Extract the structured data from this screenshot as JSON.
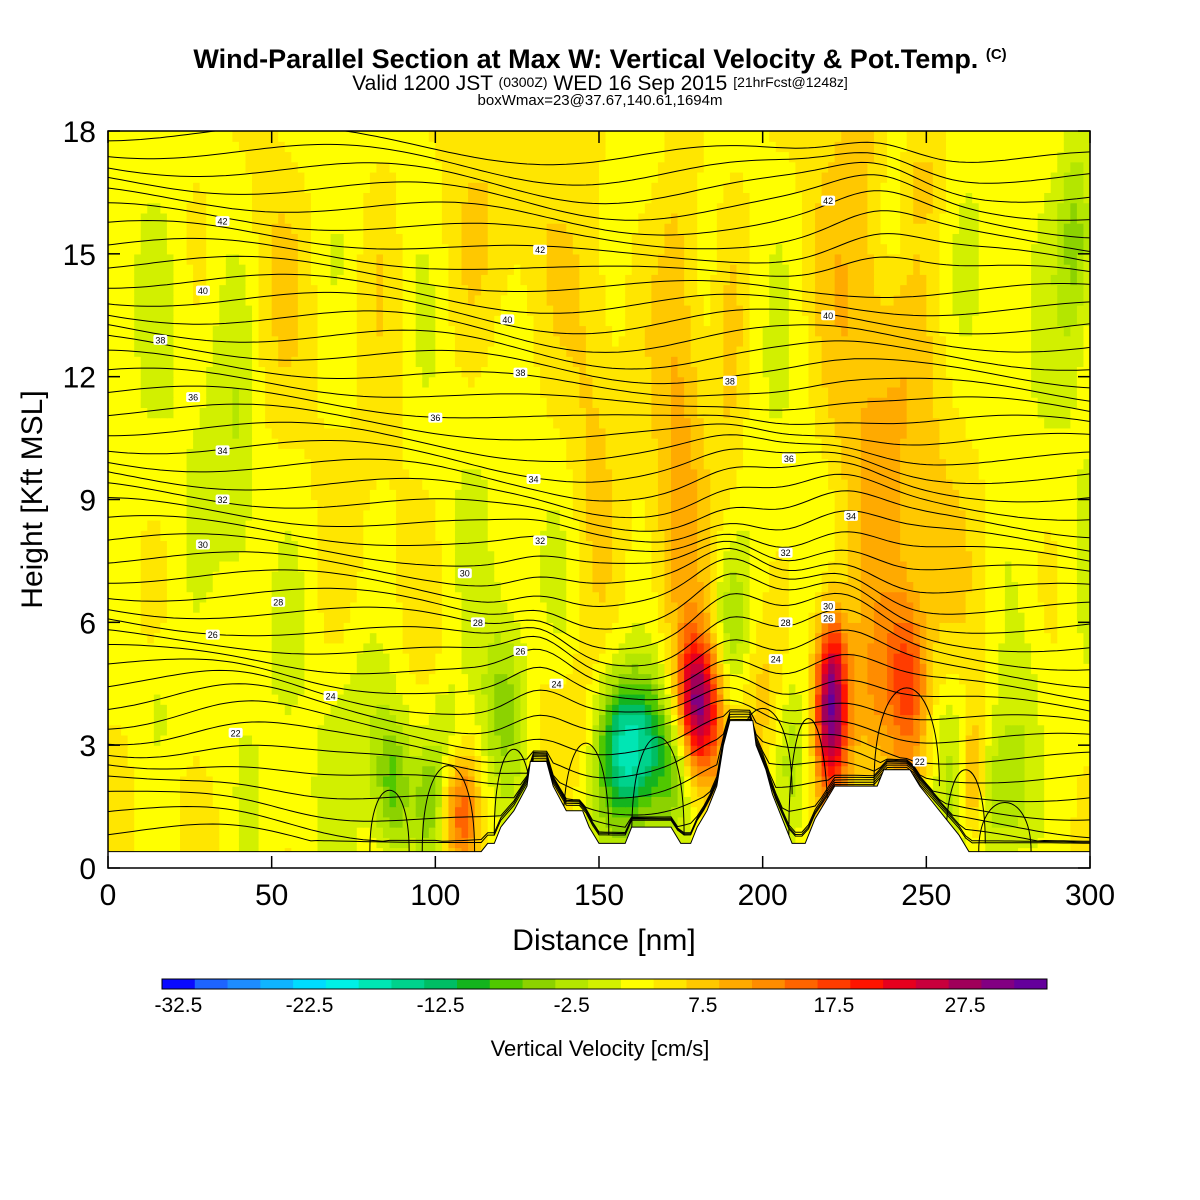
{
  "titles": {
    "main": "Wind-Parallel Section at Max W: Vertical Velocity & Pot.Temp.",
    "copyright": "(C)",
    "valid_prefix": "Valid 1200 JST",
    "valid_utc": "(0300Z)",
    "valid_date": "WED 16 Sep 2015",
    "forecast": "[21hrFcst@1248z]",
    "box": "boxWmax=23@37.67,140.61,1694m"
  },
  "colorbar": {
    "title": "Vertical Velocity [cm/s]",
    "labels": [
      "-32.5",
      "-22.5",
      "-12.5",
      "-2.5",
      "7.5",
      "17.5",
      "27.5"
    ],
    "colors": [
      "#0a0aff",
      "#1e64ff",
      "#1e8cff",
      "#10b4ff",
      "#00dcff",
      "#00f0e6",
      "#00e6b4",
      "#00d28c",
      "#00be64",
      "#14b41e",
      "#50c800",
      "#8cd200",
      "#b4e600",
      "#d2f000",
      "#ffff00",
      "#ffe600",
      "#ffc800",
      "#ffaa00",
      "#ff8c00",
      "#ff6400",
      "#ff3c00",
      "#ff1400",
      "#e6001e",
      "#c8003c",
      "#a0005a",
      "#820082",
      "#64009b"
    ]
  },
  "chart_data": {
    "type": "heatmap",
    "xlabel": "Distance [nm]",
    "ylabel": "Height [Kft MSL]",
    "xlim": [
      0,
      300
    ],
    "ylim": [
      0,
      18
    ],
    "xticks": [
      0,
      50,
      100,
      150,
      200,
      250,
      300
    ],
    "yticks": [
      0,
      3,
      6,
      9,
      12,
      15,
      18
    ],
    "terrain": [
      [
        0,
        0.4
      ],
      [
        114,
        0.4
      ],
      [
        116,
        0.6
      ],
      [
        118,
        0.6
      ],
      [
        120,
        1.0
      ],
      [
        124,
        1.4
      ],
      [
        128,
        2.0
      ],
      [
        129,
        2.6
      ],
      [
        134,
        2.6
      ],
      [
        136,
        2.0
      ],
      [
        140,
        1.4
      ],
      [
        145,
        1.4
      ],
      [
        147,
        1.0
      ],
      [
        150,
        0.6
      ],
      [
        155,
        0.6
      ],
      [
        158,
        0.6
      ],
      [
        160,
        1.0
      ],
      [
        172,
        1.0
      ],
      [
        175,
        0.6
      ],
      [
        178,
        0.6
      ],
      [
        180,
        1.0
      ],
      [
        183,
        1.4
      ],
      [
        186,
        2.0
      ],
      [
        188,
        3.0
      ],
      [
        190,
        3.6
      ],
      [
        197,
        3.6
      ],
      [
        198,
        3.0
      ],
      [
        201,
        2.4
      ],
      [
        203,
        1.8
      ],
      [
        206,
        1.2
      ],
      [
        209,
        0.6
      ],
      [
        213,
        0.6
      ],
      [
        216,
        1.2
      ],
      [
        219,
        1.6
      ],
      [
        222,
        2.0
      ],
      [
        235,
        2.0
      ],
      [
        237,
        2.4
      ],
      [
        245,
        2.4
      ],
      [
        248,
        2.0
      ],
      [
        252,
        1.6
      ],
      [
        256,
        1.2
      ],
      [
        260,
        0.8
      ],
      [
        263,
        0.4
      ],
      [
        300,
        0.4
      ]
    ],
    "theta_labels": [
      {
        "x": 35,
        "y": 15.8,
        "text": "42"
      },
      {
        "x": 132,
        "y": 15.1,
        "text": "42"
      },
      {
        "x": 220,
        "y": 16.3,
        "text": "42"
      },
      {
        "x": 29,
        "y": 14.1,
        "text": "40"
      },
      {
        "x": 122,
        "y": 13.4,
        "text": "40"
      },
      {
        "x": 220,
        "y": 13.5,
        "text": "40"
      },
      {
        "x": 16,
        "y": 12.9,
        "text": "38"
      },
      {
        "x": 126,
        "y": 12.1,
        "text": "38"
      },
      {
        "x": 190,
        "y": 11.9,
        "text": "38"
      },
      {
        "x": 26,
        "y": 11.5,
        "text": "36"
      },
      {
        "x": 100,
        "y": 11.0,
        "text": "36"
      },
      {
        "x": 208,
        "y": 10.0,
        "text": "36"
      },
      {
        "x": 35,
        "y": 10.2,
        "text": "34"
      },
      {
        "x": 130,
        "y": 9.5,
        "text": "34"
      },
      {
        "x": 227,
        "y": 8.6,
        "text": "34"
      },
      {
        "x": 35,
        "y": 9.0,
        "text": "32"
      },
      {
        "x": 132,
        "y": 8.0,
        "text": "32"
      },
      {
        "x": 207,
        "y": 7.7,
        "text": "32"
      },
      {
        "x": 29,
        "y": 7.9,
        "text": "30"
      },
      {
        "x": 109,
        "y": 7.2,
        "text": "30"
      },
      {
        "x": 220,
        "y": 6.4,
        "text": "30"
      },
      {
        "x": 52,
        "y": 6.5,
        "text": "28"
      },
      {
        "x": 113,
        "y": 6.0,
        "text": "28"
      },
      {
        "x": 207,
        "y": 6.0,
        "text": "28"
      },
      {
        "x": 32,
        "y": 5.7,
        "text": "26"
      },
      {
        "x": 126,
        "y": 5.3,
        "text": "26"
      },
      {
        "x": 220,
        "y": 6.1,
        "text": "26"
      },
      {
        "x": 68,
        "y": 4.2,
        "text": "24"
      },
      {
        "x": 137,
        "y": 4.5,
        "text": "24"
      },
      {
        "x": 204,
        "y": 5.1,
        "text": "24"
      },
      {
        "x": 39,
        "y": 3.3,
        "text": "22"
      },
      {
        "x": 248,
        "y": 2.6,
        "text": "22"
      }
    ],
    "w_features": [
      {
        "x": 34,
        "y": 11.0,
        "sx": 4,
        "sy": 4.5,
        "w": -3
      },
      {
        "x": 41,
        "y": 10.0,
        "sx": 3,
        "sy": 3.5,
        "w": -3
      },
      {
        "x": 15,
        "y": 4.0,
        "sx": 5,
        "sy": 1.2,
        "w": -3
      },
      {
        "x": 80,
        "y": 3.6,
        "sx": 8,
        "sy": 1.6,
        "w": -4
      },
      {
        "x": 103,
        "y": 3.4,
        "sx": 4,
        "sy": 1.0,
        "w": -4
      },
      {
        "x": 87,
        "y": 1.9,
        "sx": 4,
        "sy": 1.2,
        "w": -10
      },
      {
        "x": 98,
        "y": 1.6,
        "sx": 3,
        "sy": 1.0,
        "w": -8
      },
      {
        "x": 108,
        "y": 1.4,
        "sx": 3.5,
        "sy": 1.0,
        "w": 10
      },
      {
        "x": 121,
        "y": 3.9,
        "sx": 5,
        "sy": 1.6,
        "w": -8
      },
      {
        "x": 133,
        "y": 3.8,
        "sx": 5,
        "sy": 1.5,
        "w": 3
      },
      {
        "x": 143,
        "y": 3.5,
        "sx": 4,
        "sy": 1.2,
        "w": 4
      },
      {
        "x": 158,
        "y": 2.9,
        "sx": 6,
        "sy": 1.3,
        "w": -18
      },
      {
        "x": 167,
        "y": 3.0,
        "sx": 5,
        "sy": 1.3,
        "w": -9
      },
      {
        "x": 173,
        "y": 2.1,
        "sx": 4,
        "sy": 1.0,
        "w": -6
      },
      {
        "x": 182,
        "y": 3.8,
        "sx": 4,
        "sy": 1.2,
        "w": 19
      },
      {
        "x": 178,
        "y": 4.4,
        "sx": 3,
        "sy": 1.0,
        "w": 10
      },
      {
        "x": 190,
        "y": 6.0,
        "sx": 4,
        "sy": 1.2,
        "w": -6
      },
      {
        "x": 200,
        "y": 4.1,
        "sx": 4,
        "sy": 1.5,
        "w": 4
      },
      {
        "x": 209,
        "y": 2.8,
        "sx": 4,
        "sy": 1.3,
        "w": -5
      },
      {
        "x": 221,
        "y": 4.0,
        "sx": 3.5,
        "sy": 1.5,
        "w": 29
      },
      {
        "x": 234,
        "y": 3.7,
        "sx": 6,
        "sy": 1.8,
        "w": 6
      },
      {
        "x": 245,
        "y": 4.0,
        "sx": 4,
        "sy": 1.5,
        "w": 9
      },
      {
        "x": 258,
        "y": 2.7,
        "sx": 5,
        "sy": 1.6,
        "w": -5
      },
      {
        "x": 264,
        "y": 2.2,
        "sx": 3,
        "sy": 1.2,
        "w": 10
      },
      {
        "x": 274,
        "y": 1.8,
        "sx": 6,
        "sy": 1.3,
        "w": -8
      },
      {
        "x": 280,
        "y": 4.2,
        "sx": 6,
        "sy": 1.5,
        "w": -3
      },
      {
        "x": 243,
        "y": 5.3,
        "sx": 5,
        "sy": 1.2,
        "w": 5
      },
      {
        "x": 230,
        "y": 13.0,
        "sx": 9,
        "sy": 5.5,
        "w": 5
      },
      {
        "x": 175,
        "y": 13.5,
        "sx": 5,
        "sy": 4.5,
        "w": 5
      },
      {
        "x": 190,
        "y": 12.0,
        "sx": 4,
        "sy": 3.0,
        "w": 4
      },
      {
        "x": 115,
        "y": 15.5,
        "sx": 14,
        "sy": 2.5,
        "w": 3
      },
      {
        "x": 50,
        "y": 14.5,
        "sx": 7,
        "sy": 2.5,
        "w": 2
      },
      {
        "x": 83,
        "y": 15.5,
        "sx": 5,
        "sy": 2.5,
        "w": 2
      },
      {
        "x": 245,
        "y": 8.0,
        "sx": 10,
        "sy": 4.0,
        "w": 4
      },
      {
        "x": 175,
        "y": 8.5,
        "sx": 7,
        "sy": 5.0,
        "w": 3
      },
      {
        "x": 148,
        "y": 11.0,
        "sx": 5,
        "sy": 5.0,
        "w": 3
      },
      {
        "x": 240,
        "y": 16.0,
        "sx": 4,
        "sy": 1.5,
        "w": -4
      },
      {
        "x": 250,
        "y": 17.0,
        "sx": 6,
        "sy": 1.0,
        "w": 4
      },
      {
        "x": 296,
        "y": 15.5,
        "sx": 4,
        "sy": 1.8,
        "w": -8
      },
      {
        "x": 33,
        "y": 6.5,
        "sx": 5,
        "sy": 1.5,
        "w": 3
      },
      {
        "x": 85,
        "y": 9.0,
        "sx": 6,
        "sy": 5.0,
        "w": 1
      }
    ]
  }
}
